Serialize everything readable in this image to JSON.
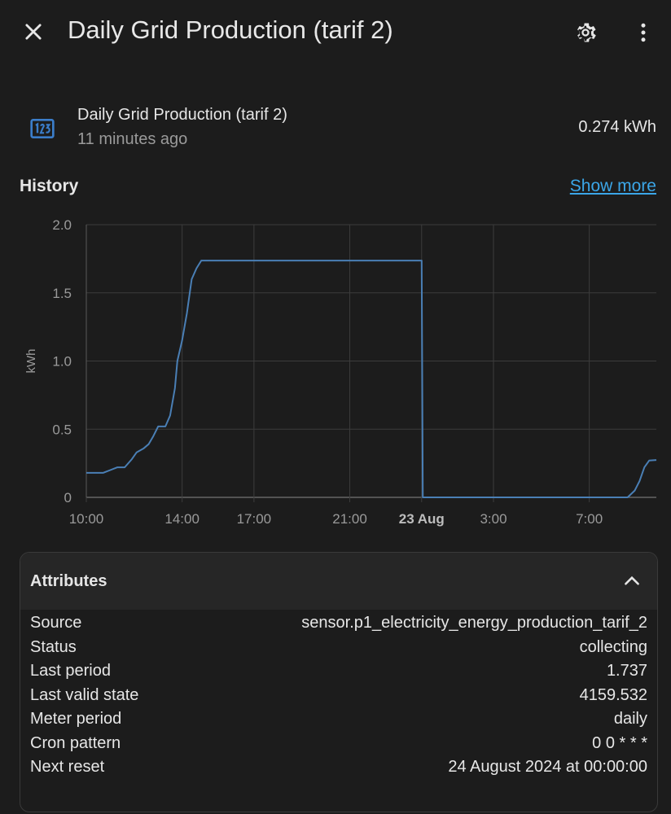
{
  "header": {
    "title": "Daily Grid Production (tarif 2)",
    "icons": [
      "close-icon",
      "gear-icon",
      "more-vertical-icon"
    ]
  },
  "entity": {
    "name": "Daily Grid Production (tarif 2)",
    "last_changed": "11 minutes ago",
    "state": "0.274 kWh",
    "icon": "counter-icon",
    "icon_color": "#3b7dc9"
  },
  "history": {
    "title": "History",
    "show_more": "Show more"
  },
  "chart_data": {
    "type": "line",
    "ylabel": "kWh",
    "xlabel": "",
    "ylim": [
      0,
      2.0
    ],
    "yticks": [
      "0",
      "0.5",
      "1.0",
      "1.5",
      "2.0"
    ],
    "xticks": [
      {
        "label": "10:00",
        "bold": false
      },
      {
        "label": "14:00",
        "bold": false
      },
      {
        "label": "17:00",
        "bold": false
      },
      {
        "label": "21:00",
        "bold": false
      },
      {
        "label": "23 Aug",
        "bold": true
      },
      {
        "label": "3:00",
        "bold": false
      },
      {
        "label": "7:00",
        "bold": false
      }
    ],
    "x_unit": "hours since 10:00 (22 Aug)",
    "series": [
      {
        "name": "Daily Grid Production (tarif 2)",
        "color": "#4a7fb5",
        "points": [
          [
            0,
            0.18
          ],
          [
            0.7,
            0.18
          ],
          [
            1.0,
            0.2
          ],
          [
            1.3,
            0.22
          ],
          [
            1.6,
            0.22
          ],
          [
            1.9,
            0.28
          ],
          [
            2.1,
            0.33
          ],
          [
            2.4,
            0.36
          ],
          [
            2.6,
            0.39
          ],
          [
            2.8,
            0.45
          ],
          [
            3.0,
            0.52
          ],
          [
            3.3,
            0.52
          ],
          [
            3.5,
            0.6
          ],
          [
            3.7,
            0.8
          ],
          [
            3.8,
            1.0
          ],
          [
            4.0,
            1.15
          ],
          [
            4.2,
            1.35
          ],
          [
            4.4,
            1.6
          ],
          [
            4.6,
            1.68
          ],
          [
            4.8,
            1.737
          ],
          [
            14.0,
            1.737
          ],
          [
            14.05,
            0.0
          ],
          [
            22.6,
            0.0
          ],
          [
            22.9,
            0.05
          ],
          [
            23.1,
            0.12
          ],
          [
            23.3,
            0.22
          ],
          [
            23.5,
            0.27
          ],
          [
            23.8,
            0.274
          ]
        ]
      }
    ]
  },
  "attributes": {
    "title": "Attributes",
    "rows": [
      {
        "key": "Source",
        "value": "sensor.p1_electricity_energy_production_tarif_2"
      },
      {
        "key": "Status",
        "value": "collecting"
      },
      {
        "key": "Last period",
        "value": "1.737"
      },
      {
        "key": "Last valid state",
        "value": "4159.532"
      },
      {
        "key": "Meter period",
        "value": "daily"
      },
      {
        "key": "Cron pattern",
        "value": "0 0 * * *"
      },
      {
        "key": "Next reset",
        "value": "24 August 2024 at 00:00:00"
      }
    ]
  }
}
